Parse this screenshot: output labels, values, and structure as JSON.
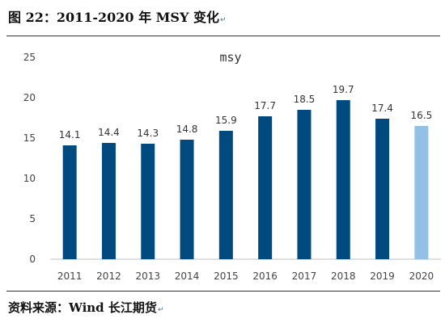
{
  "figure": {
    "title": "图 22：2011-2020 年 MSY 变化",
    "title_mark": "↵",
    "source": "资料来源：Wind 长江期货",
    "source_mark": "↵"
  },
  "chart_data": {
    "type": "bar",
    "title": "msy",
    "categories": [
      "2011",
      "2012",
      "2013",
      "2014",
      "2015",
      "2016",
      "2017",
      "2018",
      "2019",
      "2020"
    ],
    "values": [
      14.1,
      14.4,
      14.3,
      14.8,
      15.9,
      17.7,
      18.5,
      19.7,
      17.4,
      16.5
    ],
    "data_labels": [
      "14.1",
      "14.4",
      "14.3",
      "14.8",
      "15.9",
      "17.7",
      "18.5",
      "19.7",
      "17.4",
      "16.5"
    ],
    "ylim": [
      0,
      25
    ],
    "yticks": [
      "0",
      "5",
      "10",
      "15",
      "20",
      "25"
    ],
    "grid": false,
    "colors": {
      "bar": "#004a80",
      "highlight_bar": "#93c1e6",
      "axis": "#bfbfbf"
    },
    "highlight_category": "2020"
  }
}
